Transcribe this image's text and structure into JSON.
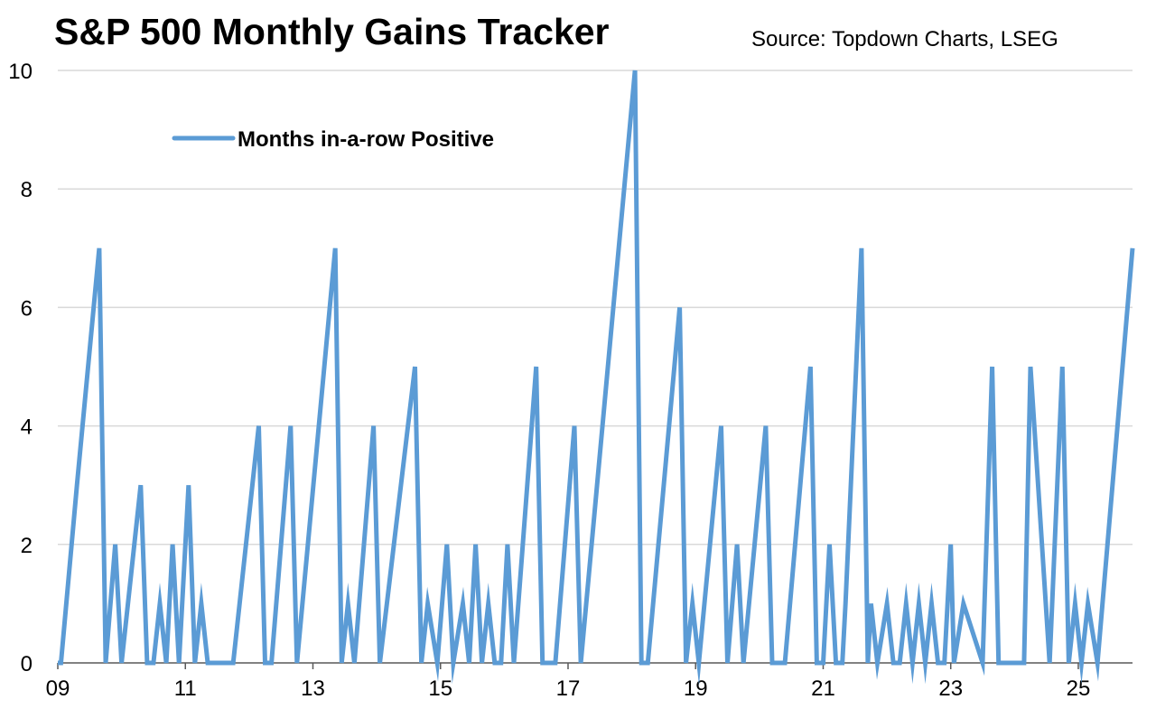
{
  "title": "S&P 500 Monthly Gains Tracker",
  "source": "Source: Topdown Charts, LSEG",
  "colors": {
    "line": "#5b9bd5",
    "grid": "#d9d9d9",
    "axis": "#595959"
  },
  "chart_data": {
    "type": "line",
    "title": "S&P 500 Monthly Gains Tracker",
    "xlabel": "",
    "ylabel": "",
    "ylim": [
      0,
      10
    ],
    "yticks": [
      0,
      2,
      4,
      6,
      8,
      10
    ],
    "xlim": [
      2009,
      2025.85
    ],
    "xticks": [
      {
        "x": 2009,
        "label": "09"
      },
      {
        "x": 2011,
        "label": "11"
      },
      {
        "x": 2013,
        "label": "13"
      },
      {
        "x": 2015,
        "label": "15"
      },
      {
        "x": 2017,
        "label": "17"
      },
      {
        "x": 2019,
        "label": "19"
      },
      {
        "x": 2021,
        "label": "21"
      },
      {
        "x": 2023,
        "label": "23"
      },
      {
        "x": 2025,
        "label": "25"
      }
    ],
    "grid": true,
    "legend_position": "top-left",
    "series": [
      {
        "name": "Months in-a-row Positive",
        "x": [
          2009.0,
          2009.05,
          2009.3,
          2009.65,
          2009.75,
          2009.9,
          2010.0,
          2010.3,
          2010.4,
          2010.5,
          2010.6,
          2010.7,
          2010.8,
          2010.9,
          2011.05,
          2011.15,
          2011.25,
          2011.35,
          2011.45,
          2011.55,
          2011.65,
          2011.75,
          2011.85,
          2012.15,
          2012.25,
          2012.35,
          2012.65,
          2012.75,
          2013.35,
          2013.45,
          2013.55,
          2013.65,
          2013.95,
          2014.05,
          2014.6,
          2014.7,
          2014.8,
          2014.95,
          2015.1,
          2015.2,
          2015.35,
          2015.45,
          2015.55,
          2015.65,
          2015.75,
          2015.85,
          2015.95,
          2016.05,
          2016.15,
          2016.5,
          2016.6,
          2016.7,
          2016.8,
          2017.1,
          2017.2,
          2018.05,
          2018.15,
          2018.25,
          2018.75,
          2018.85,
          2018.95,
          2019.05,
          2019.4,
          2019.5,
          2019.65,
          2019.75,
          2020.1,
          2020.2,
          2020.3,
          2020.4,
          2020.8,
          2020.9,
          2021.0,
          2021.1,
          2021.2,
          2021.3,
          2021.35,
          2021.6,
          2021.7,
          2021.75,
          2021.85,
          2022.0,
          2022.1,
          2022.2,
          2022.3,
          2022.4,
          2022.5,
          2022.6,
          2022.7,
          2022.8,
          2022.9,
          2023.0,
          2023.05,
          2023.2,
          2023.5,
          2023.65,
          2023.75,
          2024.15,
          2024.25,
          2024.55,
          2024.75,
          2024.85,
          2024.95,
          2025.05,
          2025.15,
          2025.3,
          2025.85
        ],
        "values": [
          0,
          0,
          3,
          7,
          0,
          2,
          0,
          3,
          0,
          0,
          1,
          0,
          2,
          0,
          3,
          0,
          1,
          0,
          0,
          0,
          0,
          0,
          1,
          4,
          0,
          0,
          4,
          0,
          7,
          0,
          1,
          0,
          4,
          0,
          5,
          0,
          1,
          0,
          2,
          0,
          1,
          0,
          2,
          0,
          1,
          0,
          0,
          2,
          0,
          5,
          0,
          0,
          0,
          4,
          0,
          10,
          0,
          0,
          6,
          0,
          1,
          0,
          4,
          0,
          2,
          0,
          4,
          0,
          0,
          0,
          5,
          0,
          0,
          2,
          0,
          0,
          1,
          7,
          0,
          1,
          0,
          1,
          0,
          0,
          1,
          0,
          1,
          0,
          1,
          0,
          0,
          2,
          0,
          1,
          0,
          5,
          0,
          0,
          5,
          0,
          5,
          0,
          1,
          0,
          1,
          0,
          7
        ]
      }
    ]
  }
}
